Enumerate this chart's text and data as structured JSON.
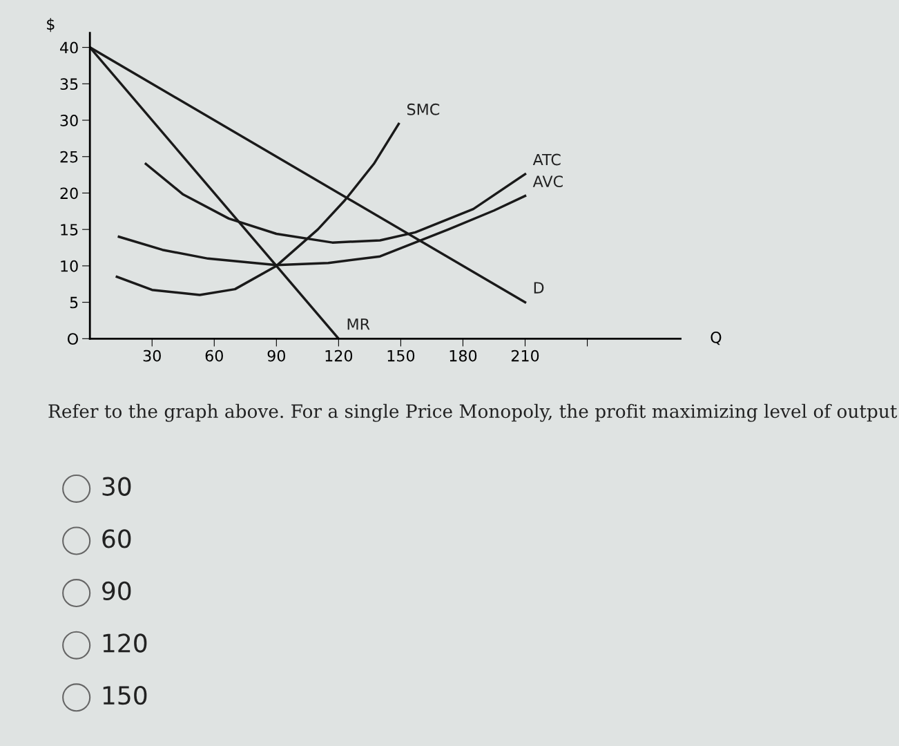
{
  "chart_data": {
    "type": "line",
    "xlabel": "Q",
    "ylabel": "$",
    "xlim": [
      0,
      285
    ],
    "ylim": [
      0,
      42
    ],
    "xticks": [
      30,
      60,
      90,
      120,
      150,
      180,
      210,
      {
        "value": 240,
        "label": null
      }
    ],
    "yticks": [
      {
        "value": 0,
        "label": "O"
      },
      5,
      10,
      15,
      20,
      25,
      30,
      35,
      40
    ],
    "grid": false,
    "legend": false,
    "marker": "none",
    "line_style": "solid",
    "series": [
      {
        "name": "D",
        "color": "#1a1a1a",
        "x": [
          0,
          210
        ],
        "values": [
          40,
          5
        ]
      },
      {
        "name": "MR",
        "color": "#1a1a1a",
        "x": [
          0,
          120
        ],
        "values": [
          40,
          0
        ]
      },
      {
        "name": "SMC",
        "color": "#1a1a1a",
        "x": [
          13,
          30,
          53,
          70,
          90,
          110,
          123,
          137,
          149
        ],
        "values": [
          8.5,
          6.7,
          6,
          6.8,
          10,
          15,
          19,
          24,
          29.5
        ]
      },
      {
        "name": "ATC",
        "color": "#1a1a1a",
        "x": [
          27,
          45,
          67,
          90,
          117,
          140,
          157,
          185,
          210
        ],
        "values": [
          24,
          19.8,
          16.5,
          14.4,
          13.2,
          13.5,
          14.6,
          17.8,
          22.6
        ]
      },
      {
        "name": "AVC",
        "color": "#1a1a1a",
        "x": [
          14,
          35,
          57,
          90,
          115,
          140,
          173,
          195,
          210
        ],
        "values": [
          14,
          12.2,
          11,
          10.1,
          10.4,
          11.3,
          15,
          17.6,
          19.6
        ]
      }
    ],
    "annotations": [
      "Refer to the graph above. For a single Price Monopoly, the profit maximizing level of output",
      "30",
      "60",
      "90",
      "120",
      "150"
    ]
  }
}
